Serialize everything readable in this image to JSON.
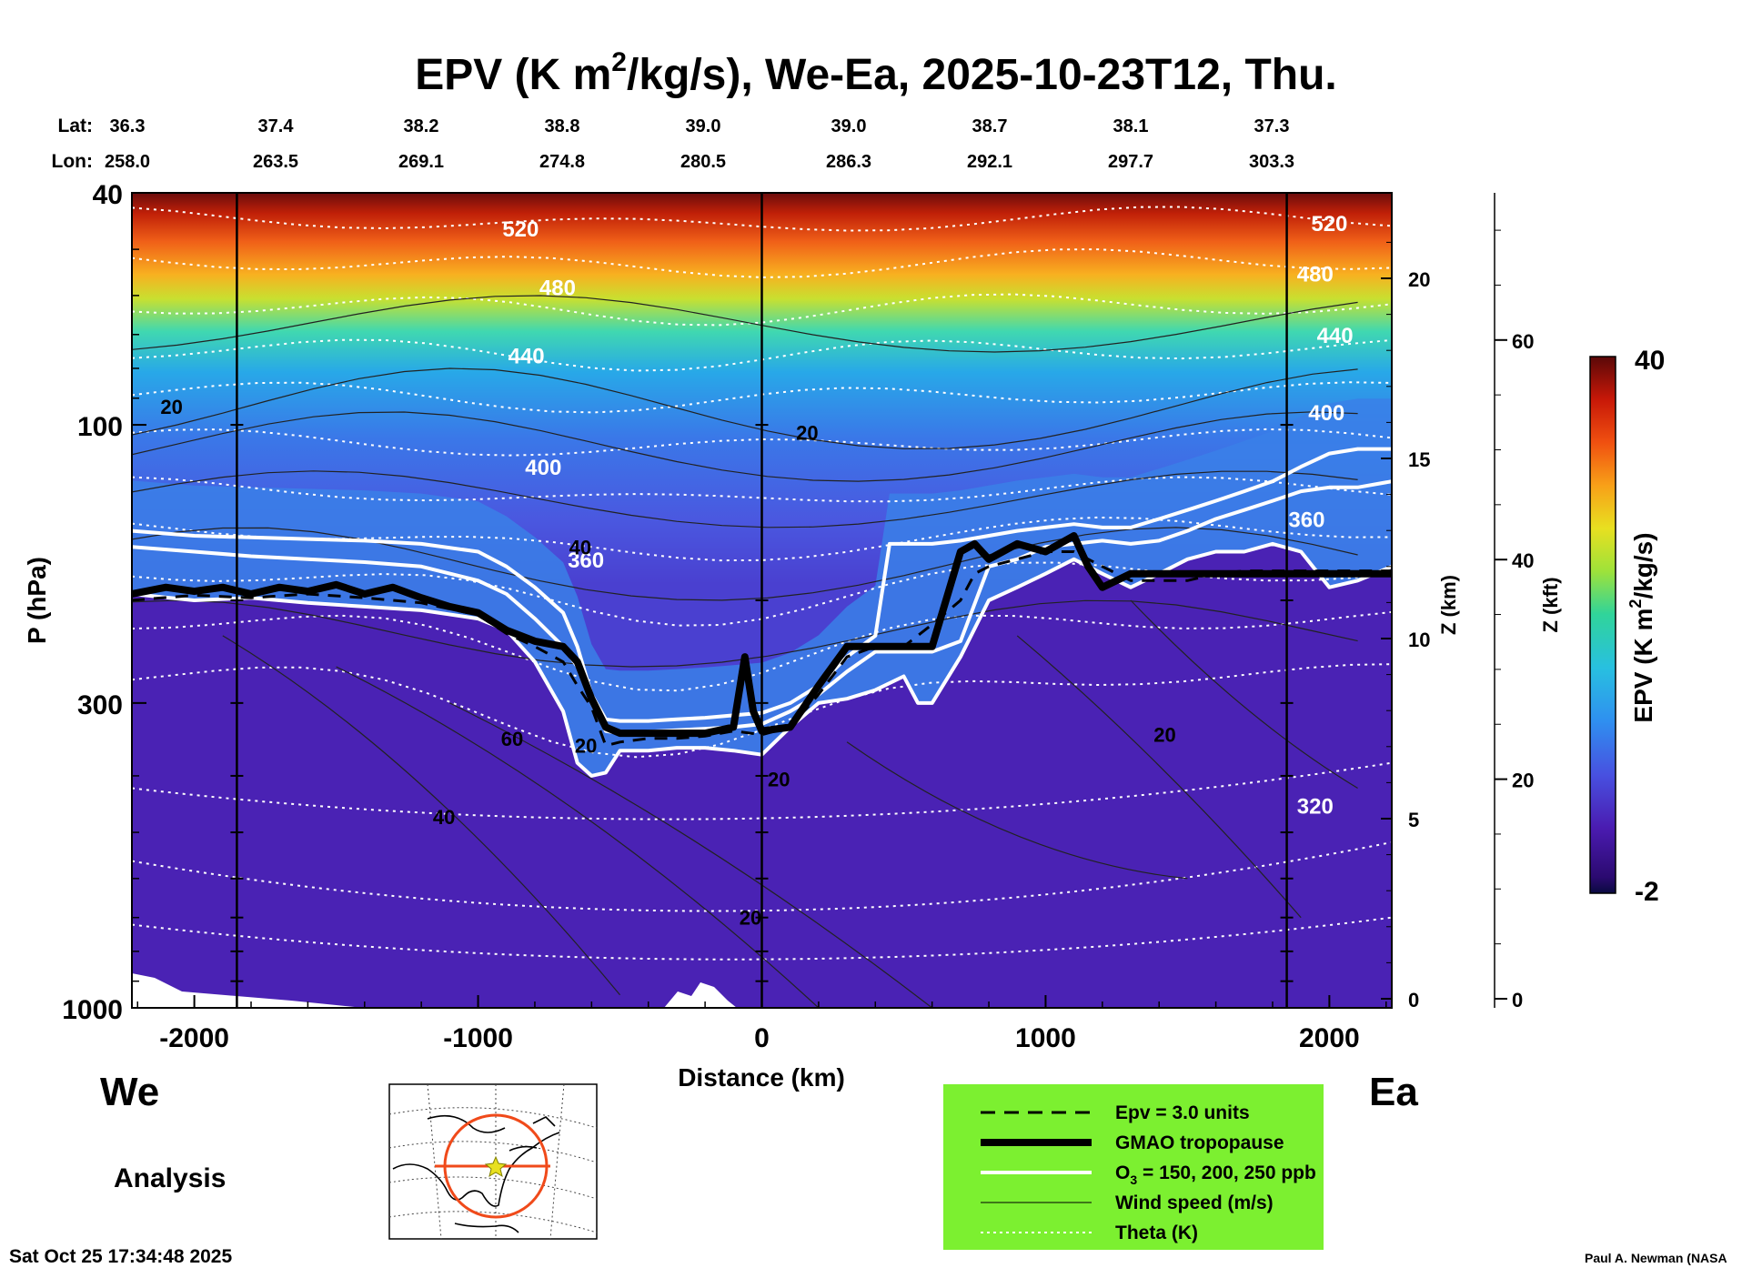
{
  "title_parts": {
    "prefix": "EPV (K m",
    "superscript": "2",
    "suffix": "/kg/s), We-Ea, 2025-10-23T12, Thu."
  },
  "header": {
    "lat_label": "Lat:",
    "lon_label": "Lon:",
    "lats": [
      "36.3",
      "37.4",
      "38.2",
      "38.8",
      "39.0",
      "39.0",
      "38.7",
      "38.1",
      "37.3"
    ],
    "lons": [
      "258.0",
      "263.5",
      "269.1",
      "274.8",
      "280.5",
      "286.3",
      "292.1",
      "297.7",
      "303.3"
    ]
  },
  "chart_data": {
    "type": "heatmap",
    "title": "EPV (K m2/kg/s), We-Ea, 2025-10-23T12, Thu.",
    "xlabel": "Distance (km)",
    "ylabel": "P (hPa)",
    "xlim": [
      -2220,
      2220
    ],
    "ylim": [
      1000,
      40
    ],
    "x_ticks": [
      "-2000",
      "-1000",
      "0",
      "1000",
      "2000"
    ],
    "x_tick_values": [
      -2000,
      -1000,
      0,
      1000,
      2000
    ],
    "p_ticks": [
      "40",
      "100",
      "300",
      "1000"
    ],
    "p_tick_values": [
      40,
      100,
      300,
      1000
    ],
    "z_km_label": "Z (km)",
    "z_km_ticks": [
      "0",
      "5",
      "10",
      "15",
      "20"
    ],
    "z_km_values": [
      0,
      5,
      10,
      15,
      20
    ],
    "z_kft_label": "Z (kft)",
    "z_kft_ticks": [
      "0",
      "20",
      "40",
      "60"
    ],
    "z_kft_values": [
      0,
      20,
      40,
      60
    ],
    "colorbar": {
      "label": "EPV (K m2/kg/s)",
      "label_prefix": "EPV (K m",
      "label_sup": "2",
      "label_suffix": "/kg/s)",
      "min": "-2",
      "max": "40"
    },
    "theta_labels": [
      {
        "text": "520",
        "x": -850,
        "p": 46
      },
      {
        "text": "480",
        "x": -720,
        "p": 58
      },
      {
        "text": "440",
        "x": -830,
        "p": 76
      },
      {
        "text": "400",
        "x": -770,
        "p": 118
      },
      {
        "text": "360",
        "x": -620,
        "p": 170
      },
      {
        "text": "520",
        "x": 2000,
        "p": 45
      },
      {
        "text": "480",
        "x": 1950,
        "p": 55
      },
      {
        "text": "440",
        "x": 2020,
        "p": 70
      },
      {
        "text": "400",
        "x": 1990,
        "p": 95
      },
      {
        "text": "360",
        "x": 1920,
        "p": 145
      },
      {
        "text": "320",
        "x": 1950,
        "p": 450
      }
    ],
    "wind_labels": [
      {
        "text": "20",
        "x": -2080,
        "p": 93
      },
      {
        "text": "20",
        "x": 160,
        "p": 103
      },
      {
        "text": "40",
        "x": -640,
        "p": 162
      },
      {
        "text": "60",
        "x": -880,
        "p": 345
      },
      {
        "text": "40",
        "x": -1120,
        "p": 470
      },
      {
        "text": "20",
        "x": -40,
        "p": 700
      },
      {
        "text": "20",
        "x": 1420,
        "p": 340
      },
      {
        "text": "20",
        "x": 60,
        "p": 405
      },
      {
        "text": "20",
        "x": -620,
        "p": 355
      }
    ],
    "tropopause": {
      "x": [
        -2220,
        -2100,
        -2000,
        -1900,
        -1800,
        -1700,
        -1600,
        -1500,
        -1400,
        -1300,
        -1200,
        -1100,
        -1000,
        -900,
        -800,
        -700,
        -650,
        -600,
        -550,
        -500,
        -400,
        -300,
        -200,
        -100,
        -60,
        -30,
        0,
        100,
        200,
        300,
        400,
        500,
        600,
        700,
        750,
        800,
        900,
        1000,
        1100,
        1150,
        1200,
        1250,
        1300,
        1400,
        1500,
        1600,
        1700,
        1800,
        1900,
        2000,
        2100,
        2220
      ],
      "p": [
        195,
        190,
        193,
        190,
        195,
        190,
        193,
        188,
        195,
        190,
        198,
        205,
        210,
        225,
        235,
        240,
        255,
        295,
        330,
        338,
        338,
        338,
        338,
        330,
        250,
        310,
        335,
        330,
        280,
        240,
        240,
        240,
        240,
        165,
        160,
        170,
        160,
        165,
        155,
        175,
        190,
        185,
        180,
        180,
        180,
        180,
        180,
        180,
        180,
        180,
        180,
        180
      ]
    },
    "epv3": {
      "x": [
        -2220,
        -2000,
        -1800,
        -1600,
        -1400,
        -1200,
        -1000,
        -900,
        -800,
        -700,
        -650,
        -600,
        -550,
        -500,
        -400,
        -300,
        -200,
        -100,
        0,
        100,
        200,
        300,
        400,
        500,
        600,
        700,
        750,
        800,
        900,
        1000,
        1100,
        1200,
        1300,
        1400,
        1500,
        1600,
        1700,
        1800,
        1900,
        2000,
        2100,
        2220
      ],
      "p": [
        200,
        196,
        198,
        195,
        198,
        202,
        212,
        228,
        240,
        255,
        280,
        305,
        355,
        350,
        345,
        345,
        342,
        335,
        340,
        330,
        290,
        250,
        240,
        240,
        220,
        200,
        180,
        175,
        170,
        165,
        165,
        175,
        185,
        185,
        185,
        180,
        178,
        178,
        178,
        178,
        178,
        178
      ]
    },
    "ozone": [
      {
        "x": [
          -2220,
          -2000,
          -1800,
          -1600,
          -1400,
          -1200,
          -1000,
          -900,
          -800,
          -700,
          -650,
          -600,
          -550,
          -500,
          -400,
          -300,
          -200,
          -100,
          0,
          100,
          200,
          300,
          400,
          450,
          500,
          600,
          700,
          800,
          900,
          1000,
          1100,
          1200,
          1300,
          1400,
          1500,
          1600,
          1700,
          1800,
          1900,
          2000,
          2100,
          2220
        ],
        "p": [
          152,
          155,
          156,
          157,
          158,
          160,
          165,
          175,
          190,
          210,
          240,
          290,
          320,
          322,
          322,
          320,
          318,
          315,
          312,
          300,
          280,
          250,
          230,
          160,
          160,
          160,
          158,
          155,
          152,
          150,
          148,
          150,
          150,
          145,
          140,
          135,
          130,
          125,
          118,
          112,
          110,
          110
        ]
      },
      {
        "x": [
          -2220,
          -2000,
          -1800,
          -1600,
          -1400,
          -1200,
          -1000,
          -900,
          -800,
          -700,
          -650,
          -600,
          -550,
          -500,
          -400,
          -300,
          -200,
          -100,
          0,
          100,
          200,
          300,
          400,
          500,
          600,
          700,
          800,
          900,
          1000,
          1100,
          1200,
          1300,
          1400,
          1500,
          1600,
          1700,
          1800,
          1900,
          2000,
          2100,
          2220
        ],
        "p": [
          162,
          165,
          168,
          170,
          172,
          175,
          185,
          195,
          215,
          240,
          260,
          300,
          335,
          338,
          336,
          334,
          332,
          330,
          326,
          310,
          290,
          265,
          245,
          245,
          245,
          235,
          175,
          170,
          162,
          160,
          158,
          160,
          158,
          152,
          145,
          140,
          135,
          130,
          128,
          128,
          125
        ]
      },
      {
        "x": [
          -2220,
          -2000,
          -1800,
          -1600,
          -1400,
          -1200,
          -1000,
          -900,
          -800,
          -700,
          -650,
          -600,
          -550,
          -500,
          -400,
          -300,
          -200,
          -100,
          0,
          100,
          200,
          300,
          400,
          500,
          550,
          600,
          700,
          800,
          900,
          1000,
          1100,
          1200,
          1300,
          1400,
          1500,
          1600,
          1700,
          1800,
          1900,
          2000,
          2100,
          2220
        ],
        "p": [
          195,
          200,
          198,
          202,
          205,
          208,
          215,
          225,
          255,
          310,
          380,
          400,
          395,
          362,
          362,
          358,
          358,
          362,
          368,
          330,
          300,
          295,
          285,
          270,
          300,
          300,
          250,
          200,
          190,
          180,
          170,
          180,
          190,
          180,
          170,
          165,
          165,
          160,
          165,
          190,
          185,
          175
        ]
      }
    ]
  },
  "labels": {
    "we": "We",
    "ea": "Ea",
    "analysis": "Analysis",
    "timestamp": "Sat Oct 25 17:34:48 2025",
    "credit": "Paul A. Newman (NASA"
  },
  "legend": {
    "items": [
      {
        "text": "Epv = 3.0 units"
      },
      {
        "text": "GMAO tropopause"
      },
      {
        "text": "O3 = 150, 200, 250 ppb",
        "prefix": "O",
        "sub": "3",
        "suffix": " = 150, 200, 250 ppb"
      },
      {
        "text": "Wind speed (m/s)"
      },
      {
        "text": "Theta (K)"
      }
    ]
  },
  "colors": {
    "legend_bg": "#7cf030",
    "ozone": "#ffffff",
    "tropopause": "#000000",
    "theta": "#ffffff",
    "map_line": "#f04a1a"
  }
}
